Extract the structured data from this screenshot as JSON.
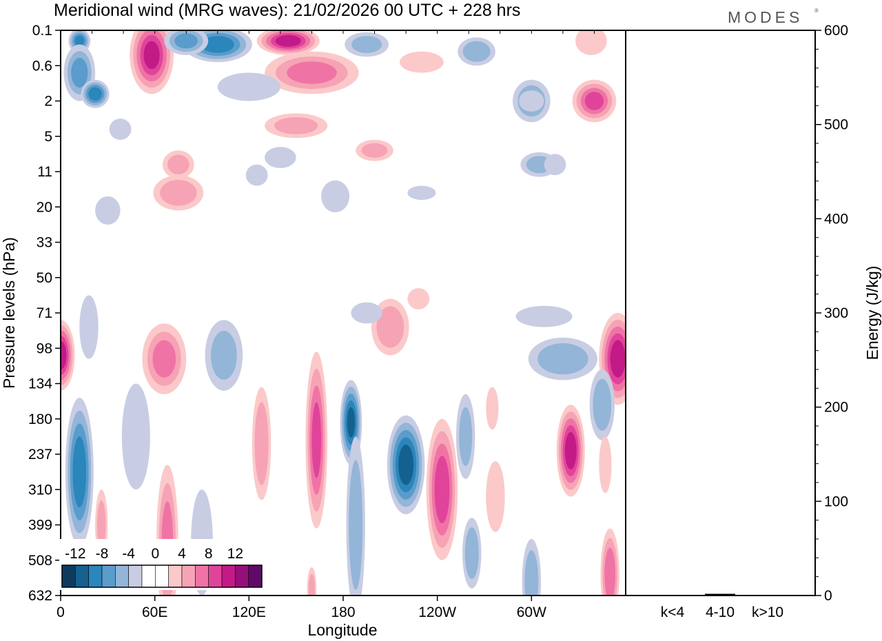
{
  "chart_data": {
    "type": "heatmap",
    "title": "Meridional wind (MRG waves):  21/02/2026  00 UTC  + 228 hrs",
    "xlabel": "Longitude",
    "ylabel": "Pressure levels (hPa)",
    "y2label": "Energy (J/kg)",
    "x_ticks": [
      "0",
      "60E",
      "120E",
      "180",
      "120W",
      "60W"
    ],
    "x_tick_degrees": [
      0,
      60,
      120,
      180,
      240,
      300
    ],
    "xlim": [
      0,
      360
    ],
    "y_levels": [
      "0.1",
      "0.6",
      "2",
      "5",
      "11",
      "20",
      "33",
      "50",
      "71",
      "98",
      "134",
      "180",
      "237",
      "310",
      "399",
      "508",
      "632"
    ],
    "colorbar": {
      "tick_labels": [
        "-12",
        "-8",
        "-4",
        "0",
        "4",
        "8",
        "12"
      ],
      "levels": [
        -14,
        -12,
        -10,
        -8,
        -6,
        -4,
        -2,
        0,
        2,
        4,
        6,
        8,
        10,
        12,
        14
      ],
      "colors": [
        "#0d3b5e",
        "#14618f",
        "#2a86bb",
        "#5a9ccb",
        "#93b5d7",
        "#c8cde3",
        "#ffffff",
        "#ffffff",
        "#fbc9c9",
        "#f6a3b5",
        "#ef74a5",
        "#e0449a",
        "#c21a86",
        "#95107a",
        "#5e0a66"
      ]
    },
    "energy": {
      "ylim": [
        0,
        600
      ],
      "ticks": [
        "0",
        "100",
        "200",
        "300",
        "400",
        "500",
        "600"
      ],
      "categories": [
        "k<4",
        "4-10",
        "k>10"
      ],
      "values": [
        0.4,
        1.8,
        0.3
      ]
    },
    "blobs": [
      {
        "lon": 12,
        "lev": 0.3,
        "w": 7,
        "h": 0.35,
        "v": -9
      },
      {
        "lon": 12,
        "lev": 1.2,
        "w": 10,
        "h": 0.8,
        "v": -7
      },
      {
        "lon": 22,
        "lev": 1.8,
        "w": 9,
        "h": 0.4,
        "v": -10
      },
      {
        "lon": 58,
        "lev": 0.7,
        "w": 14,
        "h": 1.1,
        "v": 11
      },
      {
        "lon": 100,
        "lev": 0.4,
        "w": 22,
        "h": 0.5,
        "v": -10
      },
      {
        "lon": 80,
        "lev": 0.3,
        "w": 14,
        "h": 0.4,
        "v": -7
      },
      {
        "lon": 145,
        "lev": 0.3,
        "w": 20,
        "h": 0.4,
        "v": 12
      },
      {
        "lon": 160,
        "lev": 1.2,
        "w": 30,
        "h": 0.6,
        "v": 7
      },
      {
        "lon": 120,
        "lev": 1.6,
        "w": 20,
        "h": 0.4,
        "v": -4
      },
      {
        "lon": 195,
        "lev": 0.4,
        "w": 14,
        "h": 0.35,
        "v": -5
      },
      {
        "lon": 230,
        "lev": 0.9,
        "w": 14,
        "h": 0.3,
        "v": 3
      },
      {
        "lon": 265,
        "lev": 0.6,
        "w": 12,
        "h": 0.4,
        "v": -6
      },
      {
        "lon": 300,
        "lev": 2.0,
        "w": 12,
        "h": 0.6,
        "v": -6
      },
      {
        "lon": 340,
        "lev": 2.0,
        "w": 14,
        "h": 0.6,
        "v": 9
      },
      {
        "lon": 338,
        "lev": 0.3,
        "w": 10,
        "h": 0.4,
        "v": 4
      },
      {
        "lon": 305,
        "lev": 3.8,
        "w": 12,
        "h": 0.35,
        "v": -5
      },
      {
        "lon": 150,
        "lev": 2.7,
        "w": 20,
        "h": 0.35,
        "v": 5
      },
      {
        "lon": 75,
        "lev": 3.8,
        "w": 10,
        "h": 0.4,
        "v": 5
      },
      {
        "lon": 75,
        "lev": 4.6,
        "w": 16,
        "h": 0.5,
        "v": 6
      },
      {
        "lon": 200,
        "lev": 3.4,
        "w": 12,
        "h": 0.3,
        "v": 5
      },
      {
        "lon": 140,
        "lev": 3.6,
        "w": 10,
        "h": 0.3,
        "v": -4
      },
      {
        "lon": 175,
        "lev": 4.7,
        "w": 9,
        "h": 0.45,
        "v": -4
      },
      {
        "lon": 230,
        "lev": 4.6,
        "w": 9,
        "h": 0.2,
        "v": -4
      },
      {
        "lon": 38,
        "lev": 2.8,
        "w": 7,
        "h": 0.3,
        "v": -4
      },
      {
        "lon": 30,
        "lev": 5.1,
        "w": 8,
        "h": 0.4,
        "v": -4
      },
      {
        "lon": 125,
        "lev": 4.1,
        "w": 7,
        "h": 0.3,
        "v": -3
      },
      {
        "lon": 315,
        "lev": 3.8,
        "w": 7,
        "h": 0.3,
        "v": -4
      },
      {
        "lon": 300,
        "lev": 2.0,
        "w": 8,
        "h": 0.3,
        "v": -4
      },
      {
        "lon": 0,
        "lev": 9.2,
        "w": 9,
        "h": 1.0,
        "v": 12
      },
      {
        "lon": 18,
        "lev": 8.4,
        "w": 6,
        "h": 0.9,
        "v": -3
      },
      {
        "lon": 66,
        "lev": 9.3,
        "w": 14,
        "h": 1.0,
        "v": 7
      },
      {
        "lon": 104,
        "lev": 9.2,
        "w": 12,
        "h": 1.0,
        "v": -5
      },
      {
        "lon": 210,
        "lev": 8.4,
        "w": 12,
        "h": 0.8,
        "v": 6
      },
      {
        "lon": 195,
        "lev": 8.0,
        "w": 10,
        "h": 0.3,
        "v": -4
      },
      {
        "lon": 228,
        "lev": 7.6,
        "w": 7,
        "h": 0.3,
        "v": 4
      },
      {
        "lon": 308,
        "lev": 8.1,
        "w": 18,
        "h": 0.3,
        "v": -4
      },
      {
        "lon": 355,
        "lev": 9.3,
        "w": 12,
        "h": 1.3,
        "v": 12
      },
      {
        "lon": 320,
        "lev": 9.3,
        "w": 22,
        "h": 0.6,
        "v": -6
      },
      {
        "lon": 345,
        "lev": 10.6,
        "w": 8,
        "h": 1.0,
        "v": -6
      },
      {
        "lon": 12,
        "lev": 12.5,
        "w": 9,
        "h": 2.1,
        "v": -10
      },
      {
        "lon": 26,
        "lev": 14.0,
        "w": 4,
        "h": 1.0,
        "v": 5
      },
      {
        "lon": 48,
        "lev": 11.5,
        "w": 9,
        "h": 1.5,
        "v": -4
      },
      {
        "lon": 68,
        "lev": 14.5,
        "w": 7,
        "h": 2.2,
        "v": 7
      },
      {
        "lon": 90,
        "lev": 14.5,
        "w": 7,
        "h": 1.5,
        "v": -3
      },
      {
        "lon": 128,
        "lev": 11.7,
        "w": 6,
        "h": 1.6,
        "v": 6
      },
      {
        "lon": 163,
        "lev": 11.6,
        "w": 7,
        "h": 2.5,
        "v": 9
      },
      {
        "lon": 185,
        "lev": 11.1,
        "w": 7,
        "h": 1.2,
        "v": -11
      },
      {
        "lon": 188,
        "lev": 14.0,
        "w": 6,
        "h": 2.5,
        "v": -6
      },
      {
        "lon": 220,
        "lev": 12.3,
        "w": 12,
        "h": 1.4,
        "v": -12
      },
      {
        "lon": 243,
        "lev": 13.0,
        "w": 10,
        "h": 2.0,
        "v": 10
      },
      {
        "lon": 258,
        "lev": 11.5,
        "w": 6,
        "h": 1.2,
        "v": -5
      },
      {
        "lon": 262,
        "lev": 14.8,
        "w": 6,
        "h": 1.0,
        "v": -6
      },
      {
        "lon": 275,
        "lev": 10.7,
        "w": 4,
        "h": 0.6,
        "v": 4
      },
      {
        "lon": 277,
        "lev": 13.2,
        "w": 6,
        "h": 1.0,
        "v": 4
      },
      {
        "lon": 300,
        "lev": 15.6,
        "w": 6,
        "h": 1.2,
        "v": -6
      },
      {
        "lon": 325,
        "lev": 11.9,
        "w": 9,
        "h": 1.3,
        "v": 12
      },
      {
        "lon": 350,
        "lev": 15.4,
        "w": 6,
        "h": 1.3,
        "v": 8
      },
      {
        "lon": 347,
        "lev": 12.3,
        "w": 4,
        "h": 0.8,
        "v": 4
      },
      {
        "lon": 160,
        "lev": 15.8,
        "w": 3,
        "h": 0.6,
        "v": 5
      }
    ]
  }
}
